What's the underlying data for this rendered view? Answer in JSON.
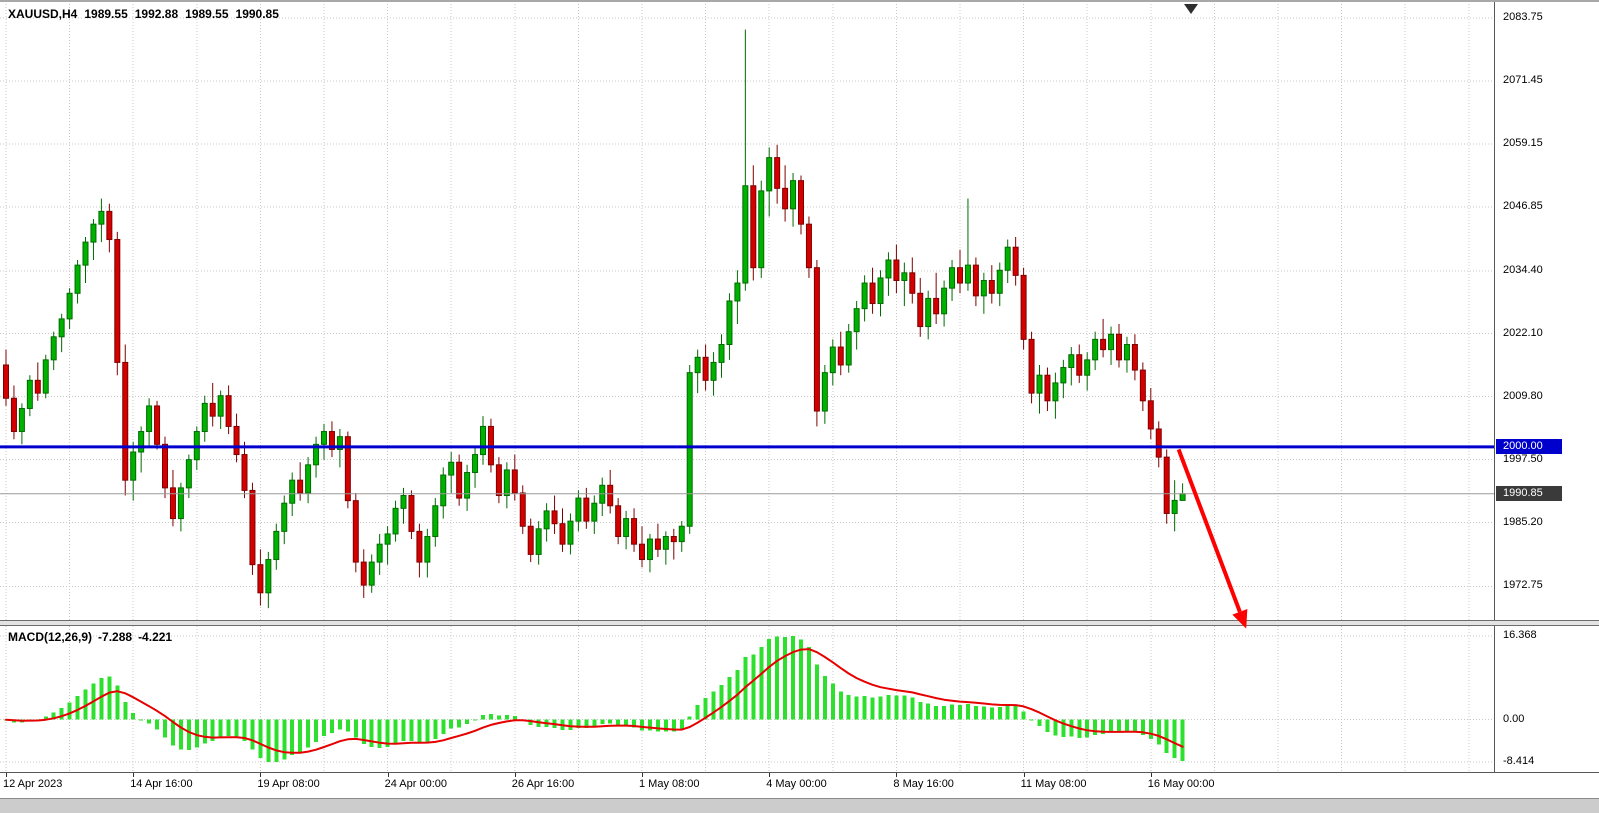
{
  "window": {
    "symbol": "XAUUSD,H4",
    "ohlc": {
      "open": "1989.55",
      "high": "1992.88",
      "low": "1989.55",
      "close": "1990.85"
    }
  },
  "price_axis": {
    "labels": [
      "2083.75",
      "2071.45",
      "2059.15",
      "2046.85",
      "2034.40",
      "2022.10",
      "2009.80",
      "1997.50",
      "1985.20",
      "1972.75"
    ],
    "hline_label": "2000.00",
    "current_label": "1990.85"
  },
  "time_axis": {
    "labels": [
      "12 Apr 2023",
      "14 Apr 16:00",
      "19 Apr 08:00",
      "24 Apr 00:00",
      "26 Apr 16:00",
      "1 May 08:00",
      "4 May 00:00",
      "8 May 16:00",
      "11 May 08:00",
      "16 May 00:00"
    ],
    "label_every_n_candles": 16,
    "grid_every_n_candles": 8
  },
  "indicator": {
    "label": "MACD(12,26,9)",
    "macd_value": "-7.288",
    "signal_value": "-4.221",
    "axis_labels": [
      "16.368",
      "0.00",
      "-8.414"
    ]
  },
  "colors": {
    "bull": "#00b200",
    "bull_border": "#006b00",
    "bear": "#d40000",
    "bear_border": "#7e0000",
    "grid": "#c9c9c9",
    "hline": "#0000cd",
    "current_line": "#9a9a9a",
    "histogram": "#2ee02e",
    "signal_line": "#e60000",
    "arrow": "#ff0000",
    "axis_text": "#000000"
  },
  "chart_data": {
    "type": "candlestick",
    "title": "XAUUSD,H4",
    "timeframe": "H4",
    "x_tick_labels": [
      "12 Apr 2023",
      "14 Apr 16:00",
      "19 Apr 08:00",
      "24 Apr 00:00",
      "26 Apr 16:00",
      "1 May 08:00",
      "4 May 00:00",
      "8 May 16:00",
      "11 May 08:00",
      "16 May 00:00"
    ],
    "ylim": [
      1965.8,
      2086.5
    ],
    "price_gridlines": [
      2083.75,
      2071.45,
      2059.15,
      2046.85,
      2034.4,
      2022.1,
      2009.8,
      1997.5,
      1985.2,
      1972.75
    ],
    "hline": 2000.0,
    "current_price": 1990.85,
    "candles_ohlc": [
      [
        2016,
        2019,
        2008,
        2009.5
      ],
      [
        2009.5,
        2012,
        2001.5,
        2003
      ],
      [
        2003,
        2008.5,
        2000.5,
        2007.5
      ],
      [
        2007.5,
        2014,
        2006,
        2013
      ],
      [
        2013,
        2016.5,
        2009,
        2010.5
      ],
      [
        2010.5,
        2018,
        2009.5,
        2017
      ],
      [
        2017,
        2022.5,
        2015,
        2021.5
      ],
      [
        2021.5,
        2026,
        2018.5,
        2025
      ],
      [
        2025,
        2031,
        2023,
        2030
      ],
      [
        2030,
        2036.5,
        2028,
        2035.5
      ],
      [
        2035.5,
        2041,
        2032,
        2040
      ],
      [
        2040,
        2044.5,
        2036.5,
        2043.5
      ],
      [
        2043.5,
        2048.5,
        2040,
        2046
      ],
      [
        2046,
        2047.5,
        2038,
        2040.5
      ],
      [
        2040.5,
        2042,
        2014,
        2016.5
      ],
      [
        2016.5,
        2020,
        1990.5,
        1993.5
      ],
      [
        1993.5,
        2001,
        1989.5,
        1999
      ],
      [
        1999,
        2004,
        1995,
        2003
      ],
      [
        2003,
        2009.5,
        2000,
        2008
      ],
      [
        2008,
        2009,
        1999.5,
        2000.5
      ],
      [
        2000.5,
        2002,
        1990,
        1992
      ],
      [
        1992,
        1995.5,
        1984.5,
        1986
      ],
      [
        1986,
        1993,
        1983.5,
        1992
      ],
      [
        1992,
        1998.5,
        1990,
        1997.5
      ],
      [
        1997.5,
        2004,
        1995.5,
        2003
      ],
      [
        2003,
        2010,
        2001,
        2008.5
      ],
      [
        2008.5,
        2012.5,
        2004,
        2006
      ],
      [
        2006,
        2011,
        2003.5,
        2010
      ],
      [
        2010,
        2012,
        2002.5,
        2004
      ],
      [
        2004,
        2006.5,
        1997,
        1998.5
      ],
      [
        1998.5,
        2001,
        1990,
        1991.5
      ],
      [
        1991.5,
        1993,
        1975,
        1977
      ],
      [
        1977,
        1980,
        1969,
        1971.5
      ],
      [
        1971.5,
        1979.5,
        1968.5,
        1978
      ],
      [
        1978,
        1985,
        1976,
        1983.5
      ],
      [
        1983.5,
        1990.5,
        1981,
        1989
      ],
      [
        1989,
        1995,
        1986.5,
        1993.5
      ],
      [
        1993.5,
        1997,
        1989.5,
        1991
      ],
      [
        1991,
        1998,
        1989,
        1996.5
      ],
      [
        1996.5,
        2002,
        1994,
        2000.5
      ],
      [
        2000.5,
        2004.5,
        1997.5,
        2003
      ],
      [
        2003,
        2005,
        1998,
        1999.5
      ],
      [
        1999.5,
        2003.5,
        1996,
        2002
      ],
      [
        2002,
        2003,
        1988,
        1989.5
      ],
      [
        1989.5,
        1991,
        1975.5,
        1977.5
      ],
      [
        1977.5,
        1980,
        1970.5,
        1973
      ],
      [
        1973,
        1979,
        1971.5,
        1977.5
      ],
      [
        1977.5,
        1983,
        1975,
        1981
      ],
      [
        1981,
        1984.5,
        1977,
        1983
      ],
      [
        1983,
        1989.5,
        1981.5,
        1988
      ],
      [
        1988,
        1992,
        1985,
        1990.5
      ],
      [
        1990.5,
        1991.5,
        1982,
        1983.5
      ],
      [
        1983.5,
        1985,
        1974.5,
        1977.5
      ],
      [
        1977.5,
        1984,
        1974.5,
        1982.5
      ],
      [
        1982.5,
        1990,
        1980.5,
        1988.5
      ],
      [
        1988.5,
        1996,
        1986,
        1994.5
      ],
      [
        1994.5,
        1999,
        1991,
        1997
      ],
      [
        1997,
        1998.5,
        1988.5,
        1990
      ],
      [
        1990,
        1996.5,
        1987.5,
        1995
      ],
      [
        1995,
        2000,
        1992,
        1998.5
      ],
      [
        1998.5,
        2006,
        1996.5,
        2004
      ],
      [
        2004,
        2005.5,
        1995,
        1996.5
      ],
      [
        1996.5,
        1998,
        1989,
        1990.5
      ],
      [
        1990.5,
        1997,
        1988,
        1995.5
      ],
      [
        1995.5,
        1998.5,
        1989.5,
        1991
      ],
      [
        1991,
        1992.5,
        1983,
        1984.5
      ],
      [
        1984.5,
        1986,
        1977.5,
        1979
      ],
      [
        1979,
        1985.5,
        1977,
        1984
      ],
      [
        1984,
        1989,
        1981.5,
        1987.5
      ],
      [
        1987.5,
        1990.5,
        1983,
        1985
      ],
      [
        1985,
        1988,
        1979.5,
        1981
      ],
      [
        1981,
        1987,
        1979,
        1985.5
      ],
      [
        1985.5,
        1991.5,
        1983.5,
        1990
      ],
      [
        1990,
        1992,
        1984,
        1985.5
      ],
      [
        1985.5,
        1990.5,
        1983,
        1989
      ],
      [
        1989,
        1994,
        1986.5,
        1992.5
      ],
      [
        1992.5,
        1995.5,
        1987,
        1988.5
      ],
      [
        1988.5,
        1990,
        1981,
        1982.5
      ],
      [
        1982.5,
        1987.5,
        1980,
        1986
      ],
      [
        1986,
        1988,
        1979.5,
        1981
      ],
      [
        1981,
        1984.5,
        1976.5,
        1978
      ],
      [
        1978,
        1983,
        1975.5,
        1982
      ],
      [
        1982,
        1985,
        1978.5,
        1980
      ],
      [
        1980,
        1983.5,
        1977,
        1982.5
      ],
      [
        1982.5,
        1984,
        1978,
        1981.5
      ],
      [
        1981.5,
        1985.5,
        1979.5,
        1984.5
      ],
      [
        1984.5,
        2016,
        1983,
        2014.5
      ],
      [
        2014.5,
        2019,
        2010.5,
        2017.5
      ],
      [
        2017.5,
        2020,
        2011,
        2013
      ],
      [
        2013,
        2018.5,
        2010,
        2016.5
      ],
      [
        2016.5,
        2022,
        2013.5,
        2020
      ],
      [
        2020,
        2030,
        2017,
        2028.5
      ],
      [
        2028.5,
        2034.5,
        2024,
        2032
      ],
      [
        2032,
        2081.5,
        2030.5,
        2051
      ],
      [
        2051,
        2055,
        2032.5,
        2035
      ],
      [
        2035,
        2052,
        2033,
        2050
      ],
      [
        2050,
        2058.5,
        2045,
        2056.5
      ],
      [
        2056.5,
        2059,
        2047.5,
        2050.5
      ],
      [
        2050.5,
        2055,
        2044,
        2046.5
      ],
      [
        2046.5,
        2053.5,
        2043,
        2052
      ],
      [
        2052,
        2053,
        2041.5,
        2043.5
      ],
      [
        2043.5,
        2045,
        2033,
        2035
      ],
      [
        2035,
        2036.5,
        2004,
        2007
      ],
      [
        2007,
        2016,
        2004.5,
        2014.5
      ],
      [
        2014.5,
        2021,
        2012,
        2019.5
      ],
      [
        2019.5,
        2022.5,
        2014,
        2016
      ],
      [
        2016,
        2024,
        2014.5,
        2022.5
      ],
      [
        2022.5,
        2028.5,
        2019,
        2027
      ],
      [
        2027,
        2033.5,
        2024.5,
        2032
      ],
      [
        2032,
        2035,
        2026,
        2028
      ],
      [
        2028,
        2034.5,
        2025.5,
        2033
      ],
      [
        2033,
        2038,
        2029.5,
        2036.5
      ],
      [
        2036.5,
        2039.5,
        2030,
        2032.5
      ],
      [
        2032.5,
        2036,
        2027.5,
        2034
      ],
      [
        2034,
        2037,
        2028,
        2030
      ],
      [
        2030,
        2033,
        2021.5,
        2023.5
      ],
      [
        2023.5,
        2030.5,
        2021,
        2029
      ],
      [
        2029,
        2034,
        2024,
        2026
      ],
      [
        2026,
        2032.5,
        2023.5,
        2031
      ],
      [
        2031,
        2036.5,
        2028.5,
        2035
      ],
      [
        2035,
        2038.5,
        2030,
        2032
      ],
      [
        2032,
        2048.5,
        2030.5,
        2035.5
      ],
      [
        2035.5,
        2037,
        2027.5,
        2029.5
      ],
      [
        2029.5,
        2034,
        2026,
        2032.5
      ],
      [
        2032.5,
        2035.5,
        2028,
        2030
      ],
      [
        2030,
        2036,
        2027.5,
        2034.5
      ],
      [
        2034.5,
        2040.5,
        2032,
        2039
      ],
      [
        2039,
        2041,
        2031.5,
        2033.5
      ],
      [
        2033.5,
        2035,
        2019,
        2021
      ],
      [
        2021,
        2022.5,
        2008.5,
        2010.5
      ],
      [
        2010.5,
        2016,
        2006.5,
        2014
      ],
      [
        2014,
        2015.5,
        2007,
        2009
      ],
      [
        2009,
        2014.5,
        2005.5,
        2012.5
      ],
      [
        2012.5,
        2017,
        2009.5,
        2015.5
      ],
      [
        2015.5,
        2019.5,
        2012,
        2018
      ],
      [
        2018,
        2020,
        2012.5,
        2014
      ],
      [
        2014,
        2018.5,
        2011,
        2017
      ],
      [
        2017,
        2022.5,
        2015,
        2021
      ],
      [
        2021,
        2025,
        2017.5,
        2019
      ],
      [
        2019,
        2023.5,
        2016,
        2022
      ],
      [
        2022,
        2024,
        2015.5,
        2017
      ],
      [
        2017,
        2021.5,
        2014.5,
        2020
      ],
      [
        2020,
        2022,
        2013,
        2015
      ],
      [
        2015,
        2016.5,
        2007,
        2009
      ],
      [
        2009,
        2011.5,
        2001.5,
        2003.5
      ],
      [
        2003.5,
        2005,
        1996,
        1998
      ],
      [
        1998,
        1999.5,
        1985,
        1987
      ],
      [
        1987,
        1993.5,
        1983.5,
        1989.55
      ],
      [
        1989.55,
        1992.88,
        1989.55,
        1990.85
      ]
    ],
    "macd": {
      "fast": 12,
      "slow": 26,
      "signal": 9,
      "current_macd": -7.288,
      "current_signal": -4.221,
      "axis_max": 16.368,
      "axis_min": -8.414
    },
    "annotation_arrow": {
      "from": {
        "bar": 147.5,
        "price": 1999.5
      },
      "to": {
        "bar": 156,
        "price": 1964.5
      }
    }
  }
}
